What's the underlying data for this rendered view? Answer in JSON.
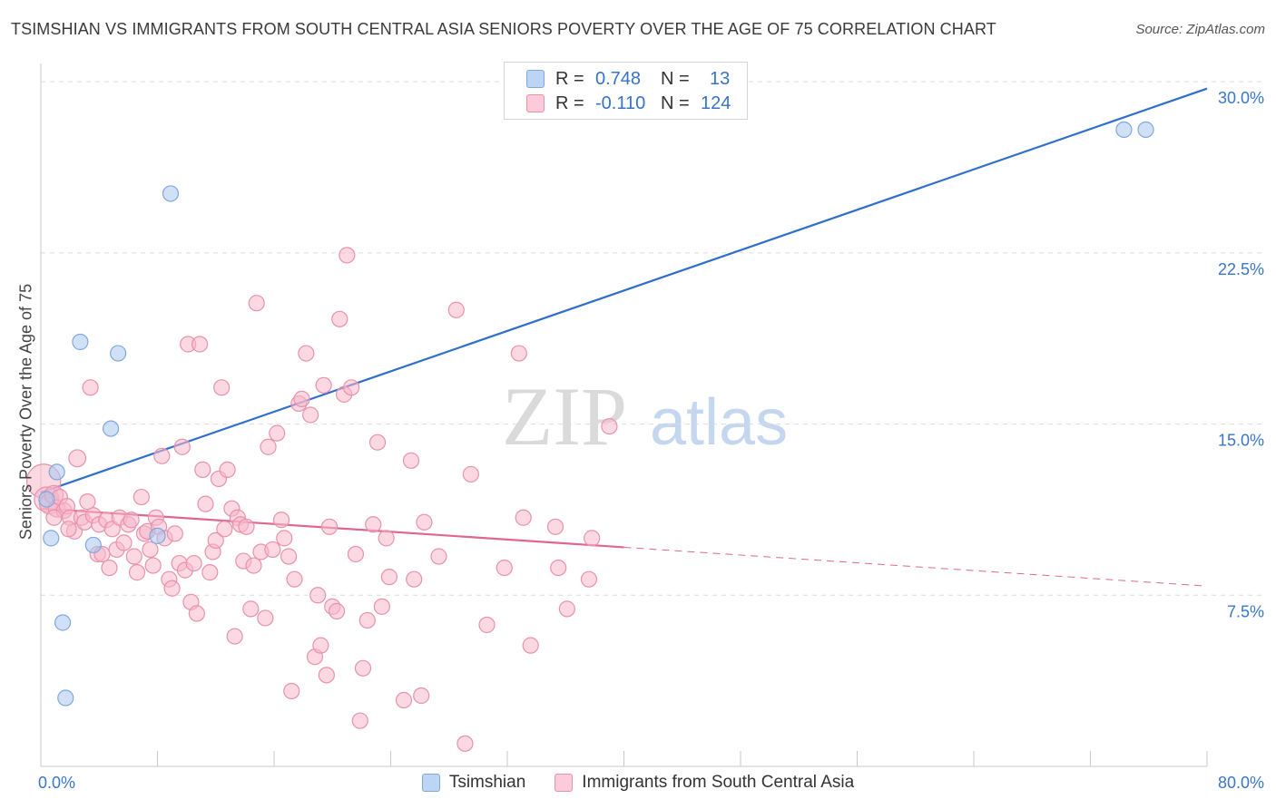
{
  "title": "TSIMSHIAN VS IMMIGRANTS FROM SOUTH CENTRAL ASIA SENIORS POVERTY OVER THE AGE OF 75 CORRELATION CHART",
  "source": "Source: ZipAtlas.com",
  "watermark": {
    "zip": "ZIP",
    "atlas": "atlas"
  },
  "legend": {
    "rows": [
      {
        "r_label": "R =",
        "r_value": "0.748",
        "n_label": "N =",
        "n_value": "13"
      },
      {
        "r_label": "R =",
        "r_value": "-0.110",
        "n_label": "N =",
        "n_value": "124"
      }
    ]
  },
  "chart_data": {
    "type": "scatter",
    "title": "TSIMSHIAN VS IMMIGRANTS FROM SOUTH CENTRAL ASIA SENIORS POVERTY OVER THE AGE OF 75 CORRELATION CHART",
    "ylabel": "Seniors Poverty Over the Age of 75",
    "xlabel": "",
    "xlim": [
      0,
      80
    ],
    "ylim": [
      0,
      30.8
    ],
    "x_tick_labels": [
      "0.0%",
      "80.0%"
    ],
    "y_ticks": [
      7.5,
      15.0,
      22.5,
      30.0
    ],
    "y_tick_labels": [
      "7.5%",
      "15.0%",
      "22.5%",
      "30.0%"
    ],
    "grid": true,
    "legend_position": "top-center",
    "series": [
      {
        "name": "Tsimshian",
        "color": "#a9c8f0",
        "stroke": "#7fa8dc",
        "line_color": "#2f6fcc",
        "trend": {
          "x": [
            0,
            80
          ],
          "y": [
            12.0,
            29.7
          ],
          "dashed_from": null
        },
        "points": [
          [
            0.4,
            11.7,
            1
          ],
          [
            0.7,
            10.0,
            1
          ],
          [
            1.1,
            12.9,
            1
          ],
          [
            1.5,
            6.3,
            1
          ],
          [
            1.7,
            3.0,
            1
          ],
          [
            2.7,
            18.6,
            1
          ],
          [
            3.6,
            9.7,
            1
          ],
          [
            4.8,
            14.8,
            1
          ],
          [
            5.3,
            18.1,
            1
          ],
          [
            8.0,
            10.1,
            1
          ],
          [
            8.9,
            25.1,
            1
          ],
          [
            74.3,
            27.9,
            1
          ],
          [
            75.8,
            27.9,
            1
          ]
        ]
      },
      {
        "name": "Immigrants from South Central Asia",
        "color": "#f7b8cb",
        "stroke": "#e892ad",
        "line_color": "#e0668f",
        "trend": {
          "x": [
            0,
            80
          ],
          "y": [
            11.3,
            7.9
          ],
          "dashed_from": 40
        },
        "points": [
          [
            0.2,
            12.5,
            2.2
          ],
          [
            0.4,
            11.7,
            1.6
          ],
          [
            0.6,
            11.5,
            1.3
          ],
          [
            0.9,
            11.9,
            1.2
          ],
          [
            1.1,
            11.3,
            1.1
          ],
          [
            1.3,
            11.8,
            1
          ],
          [
            1.6,
            11.2,
            1
          ],
          [
            1.8,
            11.4,
            1
          ],
          [
            2.0,
            10.9,
            1
          ],
          [
            2.3,
            10.3,
            1
          ],
          [
            2.5,
            13.5,
            1.1
          ],
          [
            2.8,
            10.9,
            1
          ],
          [
            3.0,
            10.7,
            1
          ],
          [
            3.4,
            16.6,
            1
          ],
          [
            3.6,
            11.0,
            1
          ],
          [
            3.9,
            9.3,
            1
          ],
          [
            4.0,
            10.6,
            1
          ],
          [
            4.2,
            9.3,
            1
          ],
          [
            4.5,
            10.8,
            1
          ],
          [
            4.7,
            8.7,
            1
          ],
          [
            4.9,
            10.4,
            1
          ],
          [
            5.2,
            9.5,
            1
          ],
          [
            5.4,
            10.9,
            1
          ],
          [
            5.7,
            9.8,
            1
          ],
          [
            6.0,
            10.6,
            1
          ],
          [
            6.2,
            10.8,
            1
          ],
          [
            6.4,
            9.2,
            1
          ],
          [
            6.6,
            8.5,
            1
          ],
          [
            6.9,
            11.8,
            1
          ],
          [
            7.1,
            10.2,
            1
          ],
          [
            7.3,
            10.3,
            1
          ],
          [
            7.5,
            9.5,
            1
          ],
          [
            7.7,
            8.8,
            1
          ],
          [
            7.9,
            10.9,
            1
          ],
          [
            8.1,
            10.5,
            1
          ],
          [
            8.3,
            13.6,
            1
          ],
          [
            8.5,
            10.0,
            1
          ],
          [
            8.8,
            8.2,
            1
          ],
          [
            9.0,
            7.8,
            1
          ],
          [
            9.2,
            10.2,
            1
          ],
          [
            9.5,
            8.9,
            1
          ],
          [
            9.7,
            14.0,
            1
          ],
          [
            9.9,
            8.6,
            1
          ],
          [
            10.1,
            18.5,
            1
          ],
          [
            10.3,
            7.2,
            1
          ],
          [
            10.5,
            8.9,
            1
          ],
          [
            10.7,
            6.7,
            1
          ],
          [
            10.9,
            18.5,
            1
          ],
          [
            11.1,
            13.0,
            1
          ],
          [
            11.3,
            11.5,
            1
          ],
          [
            11.6,
            8.5,
            1
          ],
          [
            11.8,
            9.4,
            1
          ],
          [
            12.0,
            9.9,
            1
          ],
          [
            12.2,
            12.6,
            1
          ],
          [
            12.4,
            16.6,
            1
          ],
          [
            12.6,
            10.4,
            1
          ],
          [
            12.8,
            13.0,
            1
          ],
          [
            13.1,
            11.3,
            1
          ],
          [
            13.3,
            5.7,
            1
          ],
          [
            13.5,
            10.9,
            1
          ],
          [
            13.7,
            10.6,
            1
          ],
          [
            13.9,
            9.0,
            1
          ],
          [
            14.1,
            10.5,
            1
          ],
          [
            14.4,
            6.9,
            1
          ],
          [
            14.6,
            8.8,
            1
          ],
          [
            14.8,
            20.3,
            1
          ],
          [
            15.1,
            9.4,
            1
          ],
          [
            15.4,
            6.5,
            1
          ],
          [
            15.6,
            14.0,
            1
          ],
          [
            15.9,
            9.5,
            1
          ],
          [
            16.2,
            14.6,
            1
          ],
          [
            16.5,
            10.8,
            1
          ],
          [
            16.7,
            10.0,
            1
          ],
          [
            17.0,
            9.2,
            1
          ],
          [
            17.2,
            3.3,
            1
          ],
          [
            17.4,
            8.2,
            1
          ],
          [
            17.7,
            15.9,
            1
          ],
          [
            17.9,
            16.1,
            1
          ],
          [
            18.2,
            18.1,
            1
          ],
          [
            18.5,
            15.4,
            1
          ],
          [
            18.8,
            4.8,
            1
          ],
          [
            19.0,
            7.5,
            1
          ],
          [
            19.2,
            5.3,
            1
          ],
          [
            19.4,
            16.7,
            1
          ],
          [
            19.6,
            4.0,
            1
          ],
          [
            19.8,
            10.5,
            1
          ],
          [
            20.0,
            7.0,
            1
          ],
          [
            20.3,
            6.8,
            1
          ],
          [
            20.5,
            19.6,
            1
          ],
          [
            20.8,
            16.3,
            1
          ],
          [
            21.0,
            22.4,
            1
          ],
          [
            21.3,
            16.6,
            1
          ],
          [
            21.6,
            9.3,
            1
          ],
          [
            21.9,
            2.0,
            1
          ],
          [
            22.1,
            4.3,
            1
          ],
          [
            22.4,
            6.4,
            1
          ],
          [
            22.8,
            10.6,
            1
          ],
          [
            23.1,
            14.2,
            1
          ],
          [
            23.4,
            7.0,
            1
          ],
          [
            23.7,
            10.0,
            1
          ],
          [
            23.9,
            8.3,
            1
          ],
          [
            24.9,
            2.9,
            1
          ],
          [
            25.4,
            13.4,
            1
          ],
          [
            25.6,
            8.2,
            1
          ],
          [
            26.1,
            3.1,
            1
          ],
          [
            26.3,
            10.7,
            1
          ],
          [
            27.3,
            9.2,
            1
          ],
          [
            28.5,
            20.0,
            1
          ],
          [
            29.1,
            1.0,
            1
          ],
          [
            29.5,
            12.8,
            1
          ],
          [
            30.6,
            6.2,
            1
          ],
          [
            31.8,
            8.7,
            1
          ],
          [
            32.8,
            18.1,
            1
          ],
          [
            33.1,
            10.9,
            1
          ],
          [
            33.6,
            5.3,
            1
          ],
          [
            35.3,
            10.5,
            1
          ],
          [
            35.5,
            8.7,
            1
          ],
          [
            36.1,
            6.9,
            1
          ],
          [
            37.6,
            8.2,
            1
          ],
          [
            37.8,
            10.0,
            1
          ],
          [
            39.0,
            14.9,
            1
          ],
          [
            0.9,
            10.9,
            1
          ],
          [
            1.9,
            10.4,
            1
          ],
          [
            3.2,
            11.6,
            1
          ]
        ]
      }
    ]
  }
}
